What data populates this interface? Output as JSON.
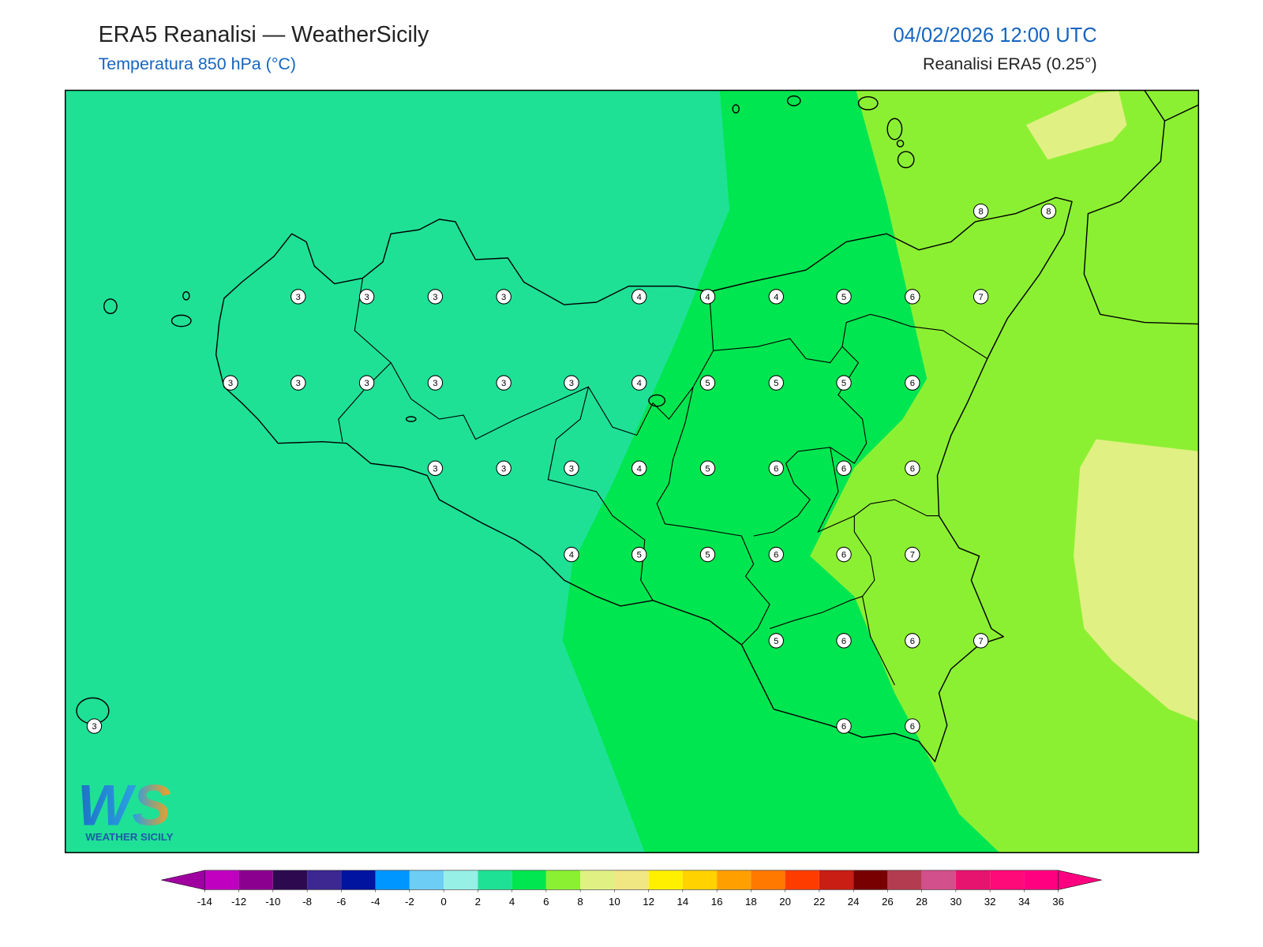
{
  "header": {
    "title": "ERA5 Reanalisi — WeatherSicily",
    "subtitle": "Temperatura 850 hPa (°C)",
    "datetime": "04/02/2026 12:00 UTC",
    "source": "Reanalisi ERA5 (0.25°)"
  },
  "labels": [
    8,
    8,
    3,
    3,
    3,
    3,
    4,
    4,
    4,
    5,
    6,
    7,
    3,
    3,
    3,
    3,
    3,
    3,
    4,
    5,
    5,
    5,
    6,
    3,
    3,
    3,
    4,
    5,
    6,
    6,
    6,
    4,
    5,
    5,
    6,
    6,
    7,
    5,
    6,
    6,
    7,
    3,
    6,
    6
  ],
  "logo": {
    "mark": "WS",
    "text": "WEATHER SICILY"
  },
  "colorbar": {
    "ticks": [
      -14,
      -12,
      -10,
      -8,
      -6,
      -4,
      -2,
      0,
      2,
      4,
      6,
      8,
      10,
      12,
      14,
      16,
      18,
      20,
      22,
      24,
      26,
      28,
      30,
      32,
      34,
      36
    ],
    "colors": [
      "#c000c0",
      "#8c0090",
      "#2d0a50",
      "#3c2890",
      "#0014a0",
      "#0096ff",
      "#6ecdf5",
      "#96f0e6",
      "#1ee196",
      "#00e650",
      "#8cf032",
      "#e1f082",
      "#f0e682",
      "#fff000",
      "#ffd200",
      "#ffa000",
      "#ff7800",
      "#ff3c00",
      "#c81e14",
      "#780000",
      "#b43c50",
      "#d2508c",
      "#e6146e",
      "#ff0a78",
      "#ff0080"
    ],
    "under": "#a000a0",
    "over": "#ff0080"
  }
}
